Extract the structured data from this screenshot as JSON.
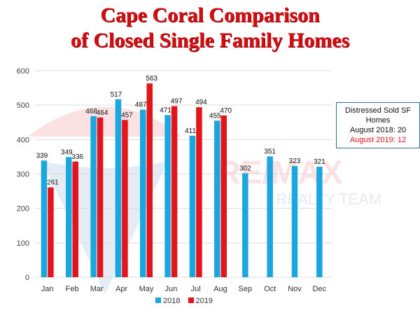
{
  "title_lines": [
    "Cape Coral Comparison",
    "of Closed Single Family Homes"
  ],
  "info_box": {
    "heading": "Distressed Sold SF Homes",
    "line_2018": "August 2018: 20",
    "line_2019": "August 2019: 12"
  },
  "watermark": {
    "text_1": "RE/MAX",
    "text_2": "REALTY TEAM"
  },
  "colors": {
    "series_2018": "#1aa7e0",
    "series_2019": "#e3151a",
    "title": "#d40d12",
    "grid": "#dddddd"
  },
  "chart_data": {
    "type": "bar",
    "categories": [
      "Jan",
      "Feb",
      "Mar",
      "Apr",
      "May",
      "Jun",
      "Jul",
      "Aug",
      "Sep",
      "Oct",
      "Nov",
      "Dec"
    ],
    "series": [
      {
        "name": "2018",
        "values": [
          339,
          349,
          468,
          517,
          487,
          471,
          411,
          455,
          302,
          351,
          323,
          321
        ]
      },
      {
        "name": "2019",
        "values": [
          261,
          336,
          464,
          457,
          563,
          497,
          494,
          470,
          null,
          null,
          null,
          null
        ]
      }
    ],
    "ylim": [
      0,
      600
    ],
    "yticks": [
      0,
      100,
      200,
      300,
      400,
      500,
      600
    ],
    "grid": true,
    "legend": "bottom",
    "xlabel": "",
    "ylabel": ""
  }
}
